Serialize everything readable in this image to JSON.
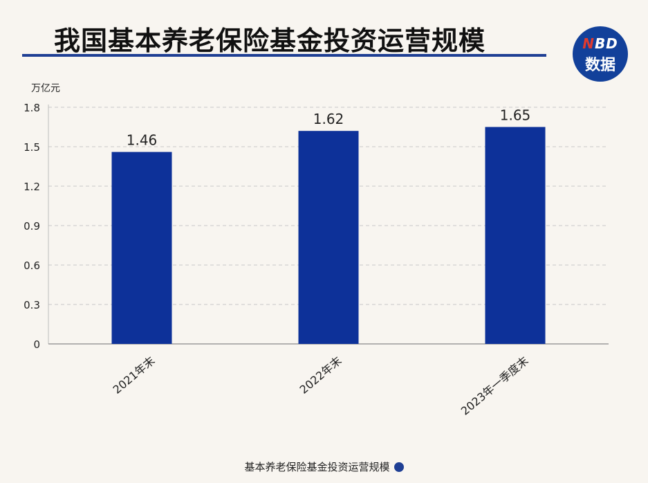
{
  "header": {
    "title": "我国基本养老保险基金投资运营规模"
  },
  "logo": {
    "top": "NBD",
    "bottom": "数据"
  },
  "footer": {
    "legend_label": "基本养老保险基金投资运营规模"
  },
  "colors": {
    "bar": "#0d3199",
    "title_rule": "#1f3f94",
    "grid": "#c8c8c8"
  },
  "chart_data": {
    "type": "bar",
    "title": "我国基本养老保险基金投资运营规模",
    "ylabel": "万亿元",
    "categories": [
      "2021年末",
      "2022年末",
      "2023年一季度末"
    ],
    "values": [
      1.46,
      1.62,
      1.65
    ],
    "data_labels": [
      "1.46",
      "1.62",
      "1.65"
    ],
    "y_ticks": [
      0,
      0.3,
      0.6,
      0.9,
      1.2,
      1.5,
      1.8
    ],
    "y_tick_labels": [
      "0",
      "0.3",
      "0.6",
      "0.9",
      "1.2",
      "1.5",
      "1.8"
    ],
    "ylim": [
      0,
      1.8
    ],
    "grid": true,
    "legend": "bottom-center"
  }
}
